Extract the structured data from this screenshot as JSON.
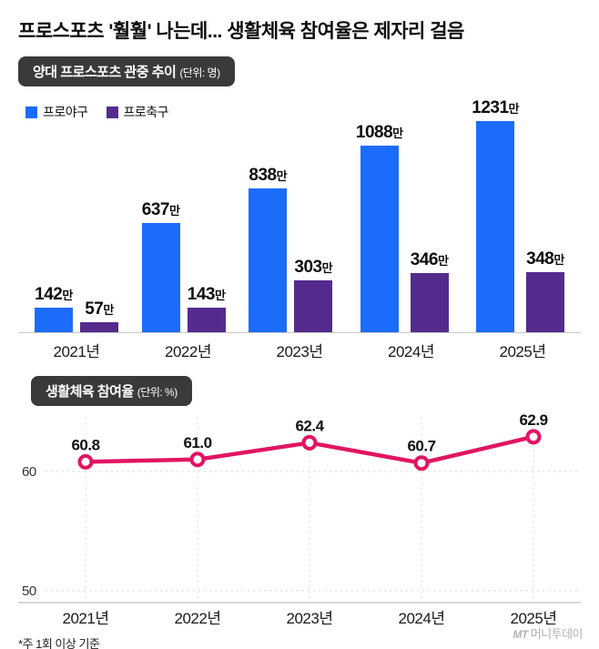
{
  "page": {
    "title": "프로스포츠 '훨훨' 나는데... 생활체육 참여율은 제자리 걸음",
    "footnote": "*주 1회 이상 기준",
    "watermark": {
      "logo": "MT",
      "text": "머니투데이"
    }
  },
  "colors": {
    "baseball_blue": "#1b6cfb",
    "soccer_purple": "#542b8d",
    "line_pink": "#e11563",
    "badge_bg": "#3a3a3a"
  },
  "chart_data": [
    {
      "type": "bar",
      "title": "양대 프로스포츠 관중 추이",
      "unit_label": "(단위: 명)",
      "categories": [
        "2021년",
        "2022년",
        "2023년",
        "2024년",
        "2025년"
      ],
      "series": [
        {
          "name": "프로야구",
          "color": "#1b6cfb",
          "values": [
            142,
            637,
            838,
            1088,
            1231
          ]
        },
        {
          "name": "프로축구",
          "color": "#542b8d",
          "values": [
            57,
            143,
            303,
            346,
            348
          ]
        }
      ],
      "value_suffix": "만",
      "ylim": [
        0,
        1231
      ],
      "legend_position": "top-left"
    },
    {
      "type": "line",
      "title": "생활체육 참여율",
      "unit_label": "(단위: %)",
      "categories": [
        "2021년",
        "2022년",
        "2023년",
        "2024년",
        "2025년"
      ],
      "values": [
        60.8,
        61.0,
        62.4,
        60.7,
        62.9
      ],
      "yticks": [
        60,
        50
      ],
      "ylim": [
        49,
        63.5
      ],
      "line_color": "#e11563",
      "grid": "dotted"
    }
  ]
}
